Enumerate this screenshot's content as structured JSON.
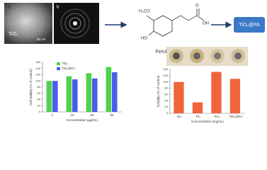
{
  "tem": {
    "panel_a": "a",
    "panel_b": "b",
    "material": "TiO₂",
    "scale": "50 nm"
  },
  "molecule": {
    "methoxy": "H₃CO",
    "hydroxyl": "HO",
    "acid_oh": "OH",
    "carbonyl": "O",
    "name": "Ferulic Acid (FA)"
  },
  "product": "TiO₂@FA",
  "chart_data": [
    {
      "type": "bar",
      "ylabel": "Cell viability (% of control)",
      "xlabel": "Concentration (µg/mL)",
      "categories": [
        "C",
        "10",
        "20",
        "50"
      ],
      "series": [
        {
          "name": "TiO₂",
          "color": "#4fd14f",
          "values": [
            100,
            115,
            125,
            145
          ]
        },
        {
          "name": "TiO₂@FA",
          "color": "#4a5ee8",
          "values": [
            100,
            105,
            108,
            128
          ]
        }
      ],
      "ylim": [
        0,
        160
      ],
      "yticks": [
        0,
        20,
        40,
        60,
        80,
        100,
        120,
        140,
        160
      ],
      "legend": "top-left"
    },
    {
      "type": "bar",
      "ylabel": "Turbidity (% of control)",
      "xlabel": "Concentration (mg/mL)",
      "categories": [
        "NC",
        "PC",
        "TiO₂",
        "TiO₂@FA"
      ],
      "series": [
        {
          "name": "Turbidity",
          "color": "#f0643c",
          "values": [
            100,
            35,
            132,
            110
          ]
        }
      ],
      "ylim": [
        0,
        140
      ],
      "yticks": [
        0,
        20,
        40,
        60,
        80,
        100,
        120,
        140
      ]
    }
  ]
}
